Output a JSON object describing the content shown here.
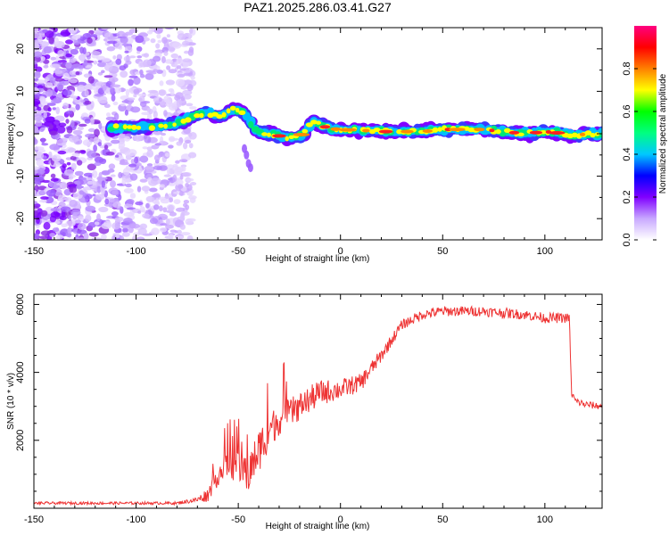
{
  "chart_data": [
    {
      "type": "heatmap",
      "title": "PAZ1.2025.286.03.41.G27",
      "xlabel": "Height of straight line (km)",
      "ylabel": "Frequency (Hz)",
      "xlim": [
        -150,
        128
      ],
      "ylim": [
        -25,
        25
      ],
      "xticks": [
        -150,
        -100,
        -50,
        0,
        50,
        100
      ],
      "yticks": [
        -20,
        -10,
        0,
        10,
        20
      ],
      "colorbar": {
        "label": "Normalized spectral amplitude",
        "range": [
          0,
          1
        ],
        "ticks": [
          "0.0",
          "0.2",
          "0.4",
          "0.6",
          "0.8"
        ],
        "colors": [
          "#ffffff",
          "#c8a8ff",
          "#8000ff",
          "#0000ff",
          "#00c8ff",
          "#00ff80",
          "#00ff00",
          "#ffff00",
          "#ff8000",
          "#ff0000",
          "#ff0080"
        ]
      },
      "ridge": {
        "x": [
          -110,
          -100,
          -90,
          -80,
          -75,
          -70,
          -65,
          -60,
          -55,
          -52,
          -48,
          -45,
          -42,
          -40,
          -35,
          -30,
          -25,
          -20,
          -17,
          -15,
          -13,
          -10,
          -5,
          0,
          10,
          20,
          30,
          40,
          50,
          60,
          70,
          80,
          90,
          100,
          110,
          115,
          120,
          128
        ],
        "y": [
          1.5,
          1.5,
          1.8,
          2.5,
          3.5,
          4.5,
          5.0,
          4.0,
          5.0,
          6.0,
          5.0,
          3.5,
          1.0,
          0.5,
          0.0,
          -0.5,
          -1.0,
          -0.5,
          0.5,
          2.0,
          3.0,
          2.0,
          1.2,
          1.0,
          0.8,
          0.5,
          0.5,
          0.5,
          1.0,
          1.0,
          1.0,
          0.5,
          0.0,
          0.5,
          0.0,
          -0.5,
          0.0,
          0.0
        ]
      },
      "noise_region": {
        "x_from": -150,
        "x_to": -72
      }
    },
    {
      "type": "line",
      "xlabel": "Height of straight line (km)",
      "ylabel": "SNR (10 * v/v)",
      "xlim": [
        -150,
        128
      ],
      "ylim": [
        0,
        6300
      ],
      "xticks": [
        -150,
        -100,
        -50,
        0,
        50,
        100
      ],
      "yticks": [
        2000,
        4000,
        6000
      ],
      "color": "#ee3333",
      "envelope": {
        "x": [
          -150,
          -80,
          -70,
          -65,
          -60,
          -55,
          -50,
          -45,
          -40,
          -35,
          -30,
          -20,
          -10,
          0,
          10,
          20,
          30,
          40,
          50,
          60,
          70,
          80,
          90,
          100,
          112,
          113,
          115,
          120,
          128
        ],
        "y": [
          150,
          150,
          250,
          400,
          1000,
          1300,
          1200,
          1000,
          1700,
          2300,
          2600,
          3000,
          3400,
          3500,
          3700,
          4500,
          5400,
          5700,
          5800,
          5800,
          5800,
          5750,
          5700,
          5600,
          5600,
          3400,
          3150,
          3050,
          3000
        ]
      },
      "noise_amplitude": {
        "x": [
          -150,
          -80,
          -70,
          -60,
          -50,
          -40,
          -30,
          -20,
          -10,
          0,
          10,
          20,
          30,
          50,
          110,
          113,
          128
        ],
        "y": [
          40,
          40,
          80,
          350,
          450,
          650,
          450,
          420,
          380,
          300,
          260,
          200,
          150,
          150,
          150,
          120,
          100
        ]
      }
    }
  ]
}
